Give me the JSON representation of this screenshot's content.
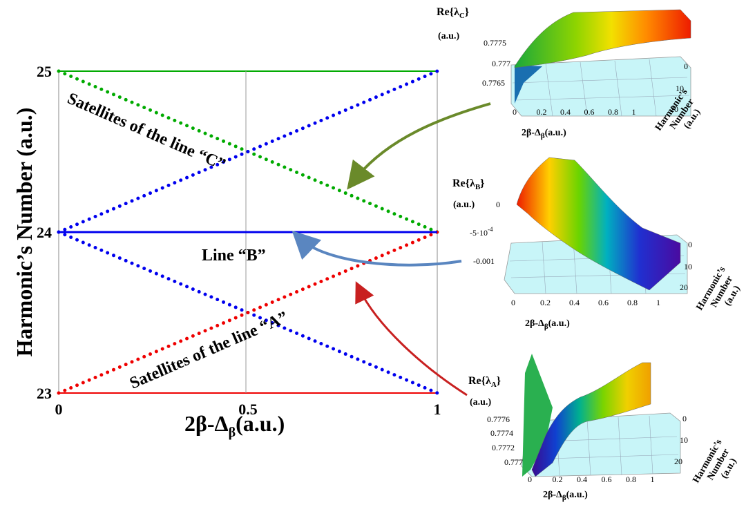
{
  "chart_data": [
    {
      "type": "line",
      "xlabel": "2β-Δ",
      "xlabel_sub": "β",
      "xlabel_unit": "(a.u.)",
      "ylabel": "Harmonic’s Number (a.u.)",
      "xlim": [
        0,
        1
      ],
      "ylim": [
        23,
        25
      ],
      "x_ticks": [
        "0",
        "0.5",
        "1"
      ],
      "y_ticks": [
        "23",
        "24",
        "25"
      ],
      "series": [
        {
          "color": "#00aa00",
          "style": "dotted",
          "x": [
            0,
            1
          ],
          "y": [
            25,
            24
          ]
        },
        {
          "color": "#0000ee",
          "style": "dotted",
          "x": [
            0,
            1
          ],
          "y": [
            24,
            25
          ]
        },
        {
          "color": "#0000ee",
          "style": "dotted",
          "x": [
            0,
            1
          ],
          "y": [
            24,
            23
          ]
        },
        {
          "color": "#ee0000",
          "style": "dotted",
          "x": [
            0,
            1
          ],
          "y": [
            23,
            24
          ]
        },
        {
          "color": "#0000ee",
          "style": "solid",
          "x": [
            0,
            1
          ],
          "y": [
            24,
            24
          ]
        }
      ],
      "annotations": [
        "Satellites of the line “C”",
        "Line “B”",
        "Satellites of the line “A”"
      ]
    },
    {
      "type": "surface",
      "title": "Re{λ",
      "title_sub": "C",
      "title_unit": "(a.u.)",
      "z_ticks": [
        "0.7775",
        "0.777",
        "0.7765"
      ],
      "x_ticks": [
        "0",
        "0.2",
        "0.4",
        "0.6",
        "0.8",
        "1"
      ],
      "y_ticks": [
        "0",
        "10",
        "20"
      ],
      "xlabel": "2β-Δ",
      "xlabel_sub": "β",
      "xlabel_unit": "(a.u.)",
      "ylabel": [
        "Harmonic’s",
        "Number",
        "(a.u.)"
      ]
    },
    {
      "type": "surface",
      "title": "Re{λ",
      "title_sub": "B",
      "title_unit": "(a.u.)",
      "z_ticks": [
        "0",
        "-5·10",
        "-0.001"
      ],
      "z_exp": "-4",
      "x_ticks": [
        "0",
        "0.2",
        "0.4",
        "0.6",
        "0.8",
        "1"
      ],
      "y_ticks": [
        "0",
        "10",
        "20"
      ],
      "xlabel": "2β-Δ",
      "xlabel_sub": "β",
      "xlabel_unit": "(a.u.)",
      "ylabel": [
        "Harmonic’s",
        "Number",
        "(a.u.)"
      ]
    },
    {
      "type": "surface",
      "title": "Re{λ",
      "title_sub": "A",
      "title_unit": "(a.u.)",
      "z_ticks": [
        "0.7776",
        "0.7774",
        "0.7772",
        "0.777"
      ],
      "x_ticks": [
        "0",
        "0.2",
        "0.4",
        "0.6",
        "0.8",
        "1"
      ],
      "y_ticks": [
        "0",
        "10",
        "20"
      ],
      "xlabel": "2β-Δ",
      "xlabel_sub": "β",
      "xlabel_unit": "(a.u.)",
      "ylabel": [
        "Harmonic’s",
        "Number",
        "(a.u.)"
      ]
    }
  ]
}
